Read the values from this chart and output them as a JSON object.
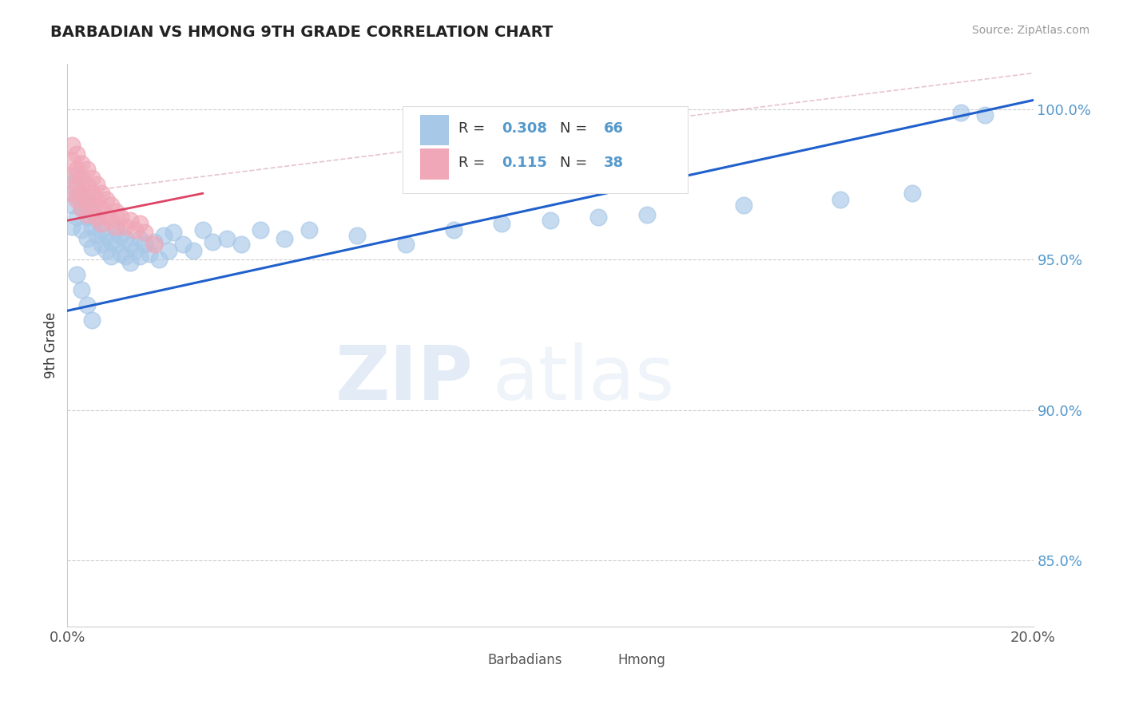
{
  "title": "BARBADIAN VS HMONG 9TH GRADE CORRELATION CHART",
  "source_text": "Source: ZipAtlas.com",
  "ylabel": "9th Grade",
  "xlim": [
    0.0,
    0.2
  ],
  "ylim": [
    0.828,
    1.015
  ],
  "xtick_labels": [
    "0.0%",
    "20.0%"
  ],
  "xtick_vals": [
    0.0,
    0.2
  ],
  "ytick_labels": [
    "85.0%",
    "90.0%",
    "95.0%",
    "100.0%"
  ],
  "ytick_vals": [
    0.85,
    0.9,
    0.95,
    1.0
  ],
  "R_barbadian": 0.308,
  "N_barbadian": 66,
  "R_hmong": 0.115,
  "N_hmong": 38,
  "blue_color": "#a8c8e8",
  "pink_color": "#f0a8b8",
  "blue_line_color": "#2060cc",
  "pink_line_color": "#dd4466",
  "tick_color": "#5599cc",
  "background_color": "#ffffff",
  "watermark_zip": "ZIP",
  "watermark_atlas": "atlas",
  "grid_color": "#cccccc",
  "spine_color": "#cccccc",
  "blue_line_x": [
    0.0,
    0.2
  ],
  "blue_line_y": [
    0.933,
    1.003
  ],
  "pink_line_x": [
    0.0,
    0.028
  ],
  "pink_line_y": [
    0.963,
    0.972
  ],
  "ref_line_x": [
    0.0,
    0.2
  ],
  "ref_line_y": [
    0.972,
    1.012
  ],
  "barbadian_x": [
    0.001,
    0.001,
    0.001,
    0.002,
    0.002,
    0.002,
    0.003,
    0.003,
    0.003,
    0.004,
    0.004,
    0.004,
    0.005,
    0.005,
    0.005,
    0.006,
    0.006,
    0.007,
    0.007,
    0.008,
    0.008,
    0.009,
    0.009,
    0.01,
    0.01,
    0.011,
    0.011,
    0.012,
    0.012,
    0.013,
    0.013,
    0.014,
    0.015,
    0.015,
    0.016,
    0.017,
    0.018,
    0.019,
    0.02,
    0.021,
    0.022,
    0.024,
    0.026,
    0.028,
    0.03,
    0.033,
    0.036,
    0.04,
    0.045,
    0.05,
    0.06,
    0.07,
    0.08,
    0.09,
    0.1,
    0.11,
    0.12,
    0.14,
    0.16,
    0.175,
    0.185,
    0.19,
    0.002,
    0.003,
    0.004,
    0.005
  ],
  "barbadian_y": [
    0.975,
    0.968,
    0.961,
    0.978,
    0.971,
    0.964,
    0.972,
    0.967,
    0.96,
    0.969,
    0.964,
    0.957,
    0.966,
    0.961,
    0.954,
    0.963,
    0.958,
    0.96,
    0.955,
    0.958,
    0.953,
    0.956,
    0.951,
    0.96,
    0.955,
    0.958,
    0.952,
    0.957,
    0.951,
    0.955,
    0.949,
    0.953,
    0.957,
    0.951,
    0.955,
    0.952,
    0.956,
    0.95,
    0.958,
    0.953,
    0.959,
    0.955,
    0.953,
    0.96,
    0.956,
    0.957,
    0.955,
    0.96,
    0.957,
    0.96,
    0.958,
    0.955,
    0.96,
    0.962,
    0.963,
    0.964,
    0.965,
    0.968,
    0.97,
    0.972,
    0.999,
    0.998,
    0.945,
    0.94,
    0.935,
    0.93
  ],
  "hmong_x": [
    0.001,
    0.001,
    0.001,
    0.001,
    0.002,
    0.002,
    0.002,
    0.002,
    0.003,
    0.003,
    0.003,
    0.003,
    0.004,
    0.004,
    0.004,
    0.004,
    0.005,
    0.005,
    0.005,
    0.006,
    0.006,
    0.006,
    0.007,
    0.007,
    0.007,
    0.008,
    0.008,
    0.009,
    0.009,
    0.01,
    0.01,
    0.011,
    0.012,
    0.013,
    0.014,
    0.015,
    0.016,
    0.018
  ],
  "hmong_y": [
    0.988,
    0.983,
    0.978,
    0.972,
    0.985,
    0.98,
    0.975,
    0.97,
    0.982,
    0.977,
    0.972,
    0.967,
    0.98,
    0.975,
    0.97,
    0.965,
    0.977,
    0.972,
    0.967,
    0.975,
    0.97,
    0.964,
    0.972,
    0.967,
    0.962,
    0.97,
    0.965,
    0.968,
    0.963,
    0.966,
    0.961,
    0.964,
    0.961,
    0.963,
    0.96,
    0.962,
    0.959,
    0.955
  ]
}
